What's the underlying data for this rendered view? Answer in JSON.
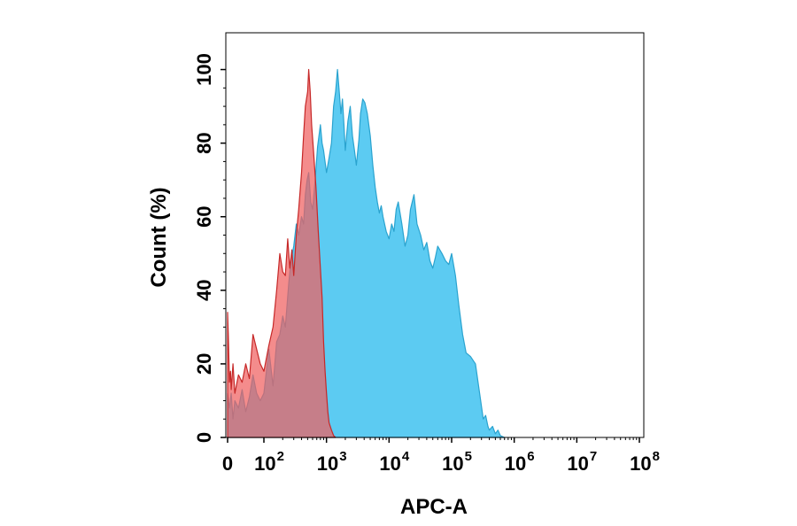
{
  "chart_data": {
    "type": "area",
    "title": "",
    "xlabel": "APC-A",
    "ylabel": "Count  (%)",
    "x_scale": "biexponential",
    "xlim": [
      -10,
      100000000
    ],
    "ylim": [
      0,
      110
    ],
    "grid": false,
    "legend": "none",
    "x_ticks": [
      {
        "value": 0,
        "base": "0",
        "exp": ""
      },
      {
        "value": 100,
        "base": "10",
        "exp": "2"
      },
      {
        "value": 1000,
        "base": "10",
        "exp": "3"
      },
      {
        "value": 10000,
        "base": "10",
        "exp": "4"
      },
      {
        "value": 100000,
        "base": "10",
        "exp": "5"
      },
      {
        "value": 1000000,
        "base": "10",
        "exp": "6"
      },
      {
        "value": 10000000,
        "base": "10",
        "exp": "7"
      },
      {
        "value": 100000000,
        "base": "10",
        "exp": "8"
      }
    ],
    "y_ticks": [
      0,
      20,
      40,
      60,
      80,
      100
    ],
    "series": [
      {
        "color_fill": "#5ccbf2",
        "color_line": "#2aa3cf",
        "points": [
          [
            0,
            12
          ],
          [
            5,
            8
          ],
          [
            10,
            12
          ],
          [
            15,
            5
          ],
          [
            20,
            10
          ],
          [
            30,
            8
          ],
          [
            40,
            13
          ],
          [
            50,
            7
          ],
          [
            60,
            11
          ],
          [
            70,
            17
          ],
          [
            80,
            12
          ],
          [
            90,
            10
          ],
          [
            100,
            12
          ],
          [
            120,
            24
          ],
          [
            140,
            14
          ],
          [
            160,
            26
          ],
          [
            180,
            28
          ],
          [
            200,
            33
          ],
          [
            220,
            30
          ],
          [
            250,
            42
          ],
          [
            270,
            48
          ],
          [
            300,
            52
          ],
          [
            330,
            58
          ],
          [
            360,
            55
          ],
          [
            400,
            60
          ],
          [
            430,
            58
          ],
          [
            460,
            66
          ],
          [
            490,
            70
          ],
          [
            520,
            72
          ],
          [
            560,
            64
          ],
          [
            600,
            62
          ],
          [
            660,
            70
          ],
          [
            720,
            79
          ],
          [
            800,
            85
          ],
          [
            850,
            80
          ],
          [
            900,
            78
          ],
          [
            1000,
            72
          ],
          [
            1100,
            76
          ],
          [
            1200,
            80
          ],
          [
            1300,
            90
          ],
          [
            1400,
            94
          ],
          [
            1500,
            100
          ],
          [
            1600,
            94
          ],
          [
            1700,
            88
          ],
          [
            1800,
            92
          ],
          [
            1900,
            85
          ],
          [
            2000,
            78
          ],
          [
            2100,
            82
          ],
          [
            2200,
            86
          ],
          [
            2400,
            90
          ],
          [
            2600,
            82
          ],
          [
            2800,
            78
          ],
          [
            3000,
            74
          ],
          [
            3300,
            81
          ],
          [
            3500,
            88
          ],
          [
            3800,
            92
          ],
          [
            4100,
            91
          ],
          [
            4500,
            88
          ],
          [
            5000,
            82
          ],
          [
            5500,
            74
          ],
          [
            6000,
            68
          ],
          [
            6500,
            64
          ],
          [
            7000,
            61
          ],
          [
            7500,
            63
          ],
          [
            8000,
            60
          ],
          [
            9000,
            56
          ],
          [
            10000,
            54
          ],
          [
            11000,
            58
          ],
          [
            12000,
            56
          ],
          [
            13000,
            62
          ],
          [
            14000,
            64
          ],
          [
            16000,
            58
          ],
          [
            18000,
            52
          ],
          [
            20000,
            55
          ],
          [
            22000,
            62
          ],
          [
            25000,
            66
          ],
          [
            28000,
            58
          ],
          [
            32000,
            55
          ],
          [
            36000,
            51
          ],
          [
            40000,
            53
          ],
          [
            45000,
            48
          ],
          [
            50000,
            46
          ],
          [
            55000,
            49
          ],
          [
            60000,
            52
          ],
          [
            70000,
            50
          ],
          [
            80000,
            48
          ],
          [
            90000,
            47
          ],
          [
            100000,
            50
          ],
          [
            115000,
            44
          ],
          [
            130000,
            36
          ],
          [
            150000,
            28
          ],
          [
            170000,
            23
          ],
          [
            200000,
            22
          ],
          [
            240000,
            20
          ],
          [
            280000,
            12
          ],
          [
            320000,
            5
          ],
          [
            350000,
            6
          ],
          [
            380000,
            3
          ],
          [
            400000,
            2
          ],
          [
            450000,
            3
          ],
          [
            500000,
            1
          ],
          [
            550000,
            2
          ],
          [
            600000,
            0.5
          ],
          [
            700000,
            0
          ]
        ]
      },
      {
        "color_fill": "#f06060",
        "color_line": "#c62828",
        "points": [
          [
            0,
            34
          ],
          [
            2,
            28
          ],
          [
            5,
            15
          ],
          [
            8,
            18
          ],
          [
            10,
            13
          ],
          [
            15,
            20
          ],
          [
            20,
            12
          ],
          [
            30,
            17
          ],
          [
            40,
            15
          ],
          [
            50,
            20
          ],
          [
            60,
            16
          ],
          [
            70,
            28
          ],
          [
            80,
            24
          ],
          [
            90,
            20
          ],
          [
            100,
            18
          ],
          [
            120,
            25
          ],
          [
            140,
            30
          ],
          [
            160,
            40
          ],
          [
            180,
            50
          ],
          [
            200,
            45
          ],
          [
            220,
            44
          ],
          [
            240,
            54
          ],
          [
            260,
            46
          ],
          [
            280,
            51
          ],
          [
            300,
            44
          ],
          [
            330,
            55
          ],
          [
            360,
            62
          ],
          [
            400,
            72
          ],
          [
            430,
            82
          ],
          [
            460,
            90
          ],
          [
            500,
            94
          ],
          [
            520,
            100
          ],
          [
            550,
            94
          ],
          [
            580,
            85
          ],
          [
            620,
            78
          ],
          [
            680,
            68
          ],
          [
            740,
            56
          ],
          [
            800,
            46
          ],
          [
            850,
            38
          ],
          [
            900,
            26
          ],
          [
            950,
            18
          ],
          [
            1000,
            12
          ],
          [
            1050,
            7
          ],
          [
            1100,
            4
          ],
          [
            1200,
            2
          ],
          [
            1300,
            0.5
          ],
          [
            1400,
            0
          ]
        ]
      }
    ]
  }
}
